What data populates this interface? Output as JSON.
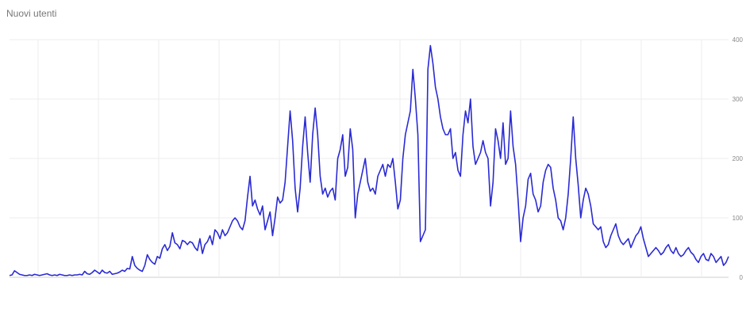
{
  "chart_data": {
    "type": "line",
    "title": "Nuovi utenti",
    "ylim": [
      0,
      400
    ],
    "y_ticks": [
      0,
      100,
      200,
      300,
      400
    ],
    "grid": true,
    "line_color": "#2a2ad4",
    "x_ticks": [
      "",
      "",
      "",
      "",
      "",
      "",
      "",
      "",
      "",
      "",
      "",
      ""
    ],
    "values": [
      3,
      4,
      11,
      8,
      5,
      4,
      3,
      3,
      4,
      3,
      5,
      4,
      3,
      4,
      5,
      6,
      4,
      3,
      4,
      3,
      5,
      4,
      3,
      3,
      4,
      3,
      4,
      4,
      5,
      4,
      10,
      6,
      5,
      8,
      12,
      9,
      6,
      12,
      8,
      7,
      10,
      5,
      6,
      7,
      9,
      12,
      10,
      15,
      14,
      35,
      20,
      15,
      12,
      10,
      20,
      38,
      30,
      25,
      22,
      35,
      32,
      48,
      55,
      45,
      52,
      75,
      58,
      55,
      48,
      62,
      60,
      55,
      60,
      58,
      50,
      45,
      65,
      40,
      55,
      60,
      70,
      55,
      80,
      75,
      65,
      80,
      70,
      75,
      85,
      95,
      100,
      95,
      85,
      80,
      95,
      135,
      170,
      120,
      130,
      115,
      105,
      120,
      80,
      95,
      110,
      70,
      100,
      135,
      125,
      130,
      160,
      220,
      280,
      230,
      150,
      110,
      150,
      220,
      270,
      210,
      160,
      240,
      285,
      240,
      170,
      140,
      150,
      135,
      145,
      150,
      130,
      200,
      215,
      240,
      170,
      185,
      250,
      215,
      100,
      140,
      160,
      180,
      200,
      160,
      145,
      150,
      140,
      170,
      180,
      190,
      170,
      190,
      185,
      200,
      160,
      115,
      130,
      200,
      240,
      260,
      280,
      350,
      300,
      240,
      60,
      70,
      80,
      350,
      390,
      360,
      320,
      300,
      270,
      250,
      240,
      240,
      250,
      200,
      210,
      180,
      170,
      240,
      280,
      260,
      300,
      220,
      190,
      200,
      210,
      230,
      210,
      200,
      120,
      160,
      250,
      230,
      200,
      260,
      190,
      200,
      280,
      220,
      190,
      130,
      60,
      100,
      120,
      165,
      175,
      140,
      130,
      110,
      120,
      160,
      180,
      190,
      185,
      150,
      130,
      100,
      95,
      80,
      100,
      140,
      200,
      270,
      200,
      155,
      100,
      130,
      150,
      140,
      120,
      90,
      85,
      80,
      85,
      60,
      50,
      55,
      70,
      80,
      90,
      70,
      60,
      55,
      60,
      65,
      50,
      60,
      70,
      75,
      85,
      65,
      50,
      35,
      40,
      45,
      50,
      45,
      38,
      42,
      50,
      55,
      45,
      40,
      50,
      40,
      35,
      38,
      45,
      50,
      42,
      38,
      30,
      25,
      35,
      40,
      30,
      28,
      40,
      35,
      25,
      30,
      35,
      20,
      25,
      35
    ]
  }
}
